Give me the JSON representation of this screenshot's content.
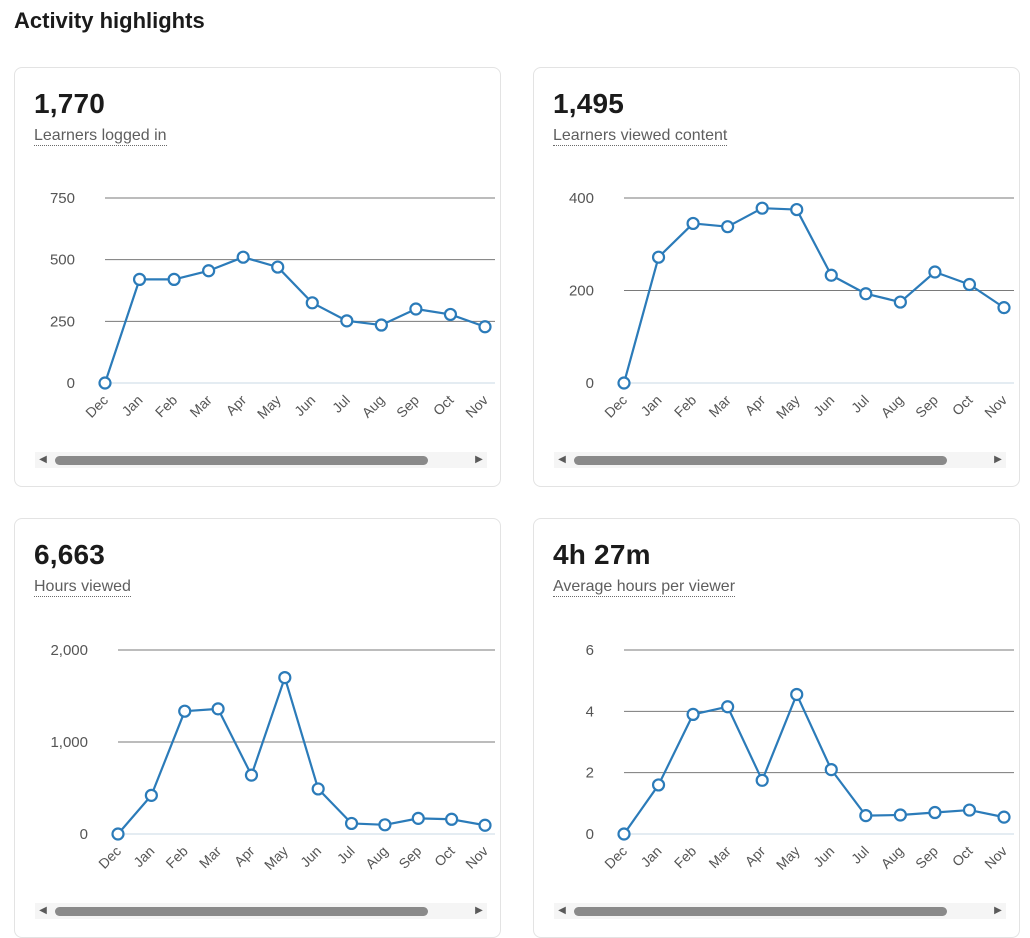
{
  "page": {
    "title": "Activity highlights"
  },
  "cards": [
    {
      "value": "1,770",
      "label": "Learners logged in"
    },
    {
      "value": "1,495",
      "label": "Learners viewed content"
    },
    {
      "value": "6,663",
      "label": "Hours viewed"
    },
    {
      "value": "4h 27m",
      "label": "Average hours per viewer"
    }
  ],
  "colors": {
    "series": "#2b7bb9",
    "grid": "#7a7a7a",
    "baseline": "#c8d8e4"
  },
  "chart_data": [
    {
      "type": "line",
      "categories": [
        "Dec",
        "Jan",
        "Feb",
        "Mar",
        "Apr",
        "May",
        "Jun",
        "Jul",
        "Aug",
        "Sep",
        "Oct",
        "Nov"
      ],
      "values": [
        0,
        420,
        420,
        455,
        510,
        470,
        325,
        252,
        235,
        300,
        278,
        228
      ],
      "yticks": [
        0,
        250,
        500,
        750
      ],
      "ytick_labels": [
        "0",
        "250",
        "500",
        "750"
      ],
      "ylim": [
        0,
        750
      ],
      "grid": true
    },
    {
      "type": "line",
      "categories": [
        "Dec",
        "Jan",
        "Feb",
        "Mar",
        "Apr",
        "May",
        "Jun",
        "Jul",
        "Aug",
        "Sep",
        "Oct",
        "Nov"
      ],
      "values": [
        0,
        272,
        345,
        338,
        378,
        375,
        233,
        193,
        175,
        240,
        213,
        163
      ],
      "yticks": [
        0,
        200,
        400
      ],
      "ytick_labels": [
        "0",
        "200",
        "400"
      ],
      "ylim": [
        0,
        400
      ],
      "grid": true
    },
    {
      "type": "line",
      "categories": [
        "Dec",
        "Jan",
        "Feb",
        "Mar",
        "Apr",
        "May",
        "Jun",
        "Jul",
        "Aug",
        "Sep",
        "Oct",
        "Nov"
      ],
      "values": [
        0,
        420,
        1335,
        1360,
        640,
        1700,
        490,
        115,
        100,
        170,
        160,
        95
      ],
      "yticks": [
        0,
        1000,
        2000
      ],
      "ytick_labels": [
        "0",
        "1,000",
        "2,000"
      ],
      "ylim": [
        0,
        2000
      ],
      "grid": true
    },
    {
      "type": "line",
      "categories": [
        "Dec",
        "Jan",
        "Feb",
        "Mar",
        "Apr",
        "May",
        "Jun",
        "Jul",
        "Aug",
        "Sep",
        "Oct",
        "Nov"
      ],
      "values": [
        0,
        1.6,
        3.9,
        4.15,
        1.75,
        4.55,
        2.1,
        0.6,
        0.62,
        0.7,
        0.78,
        0.55
      ],
      "yticks": [
        0,
        2,
        4,
        6
      ],
      "ytick_labels": [
        "0",
        "2",
        "4",
        "6"
      ],
      "ylim": [
        0,
        6
      ],
      "grid": true
    }
  ]
}
